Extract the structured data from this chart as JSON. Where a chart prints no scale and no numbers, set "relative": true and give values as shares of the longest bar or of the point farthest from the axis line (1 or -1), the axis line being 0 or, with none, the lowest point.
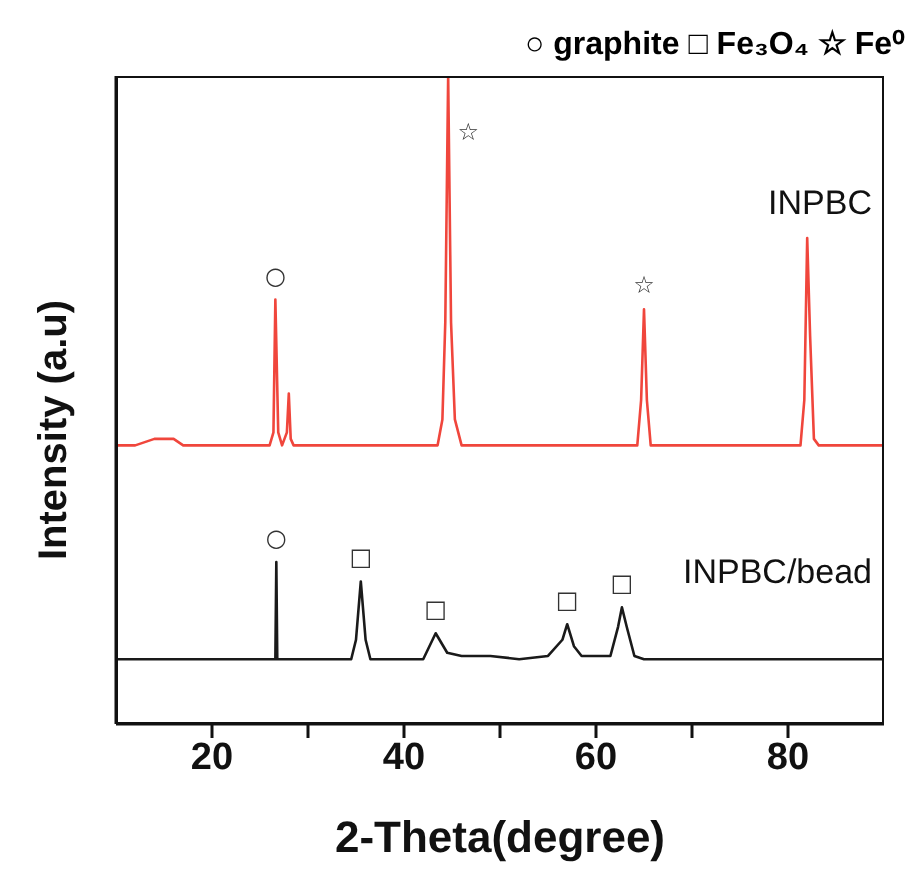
{
  "chart_data": {
    "type": "line",
    "relative": true,
    "xlabel": "2-Theta(degree)",
    "ylabel": "Intensity (a.u)",
    "xlim": [
      10,
      90
    ],
    "xticks": [
      20,
      {
        "value": 30,
        "label": null
      },
      40,
      {
        "value": 50,
        "label": null
      },
      60,
      {
        "value": 70,
        "label": null
      },
      80
    ],
    "tick_labels": "x",
    "grid": false,
    "legend": false,
    "marker": "none",
    "line_style": "solid",
    "annotations": [
      "○ graphite  □ Fe₃O₄  ☆ Fe⁰",
      {
        "text": "○",
        "x": 26.6,
        "y": 0.655
      },
      {
        "text": "☆",
        "x": 44.6,
        "y": 1.0
      },
      {
        "text": "☆",
        "x": 65.0,
        "y": 0.64
      },
      {
        "text": "○",
        "x": 26.7,
        "y": 0.25
      },
      {
        "text": "□",
        "x": 35.5,
        "y": 0.22
      },
      {
        "text": "□",
        "x": 43.3,
        "y": 0.14
      },
      {
        "text": "□",
        "x": 57.0,
        "y": 0.154
      },
      {
        "text": "□",
        "x": 62.7,
        "y": 0.18
      }
    ],
    "series": [
      {
        "name": "INPBC",
        "color": "#f0463c",
        "x": [
          10,
          12,
          14,
          16,
          17,
          26,
          26.4,
          26.6,
          26.9,
          27.3,
          27.8,
          28.0,
          28.2,
          28.5,
          43.5,
          44.0,
          44.3,
          44.6,
          44.9,
          45.3,
          46,
          64.3,
          64.7,
          65.0,
          65.3,
          65.7,
          81.3,
          81.7,
          82.0,
          82.3,
          82.7,
          83.2,
          90
        ],
        "values": [
          0.43,
          0.43,
          0.44,
          0.44,
          0.43,
          0.43,
          0.45,
          0.655,
          0.45,
          0.43,
          0.45,
          0.51,
          0.44,
          0.43,
          0.43,
          0.47,
          0.62,
          1.0,
          0.62,
          0.47,
          0.43,
          0.43,
          0.5,
          0.64,
          0.5,
          0.43,
          0.43,
          0.5,
          0.75,
          0.6,
          0.44,
          0.43,
          0.43
        ]
      },
      {
        "name": "INPBC/bead",
        "color": "#1a1a1a",
        "x": [
          10,
          26.6,
          26.7,
          26.8,
          34.5,
          35.0,
          35.5,
          36.0,
          36.5,
          42,
          43.3,
          44.5,
          46,
          49,
          52,
          55,
          56.5,
          57.0,
          57.7,
          58.5,
          61.5,
          62.3,
          62.7,
          63.2,
          64,
          65,
          90
        ],
        "values": [
          0.1,
          0.1,
          0.25,
          0.1,
          0.1,
          0.13,
          0.22,
          0.13,
          0.1,
          0.1,
          0.14,
          0.11,
          0.105,
          0.105,
          0.1,
          0.105,
          0.13,
          0.154,
          0.12,
          0.105,
          0.105,
          0.15,
          0.18,
          0.15,
          0.105,
          0.1,
          0.1
        ]
      }
    ]
  }
}
